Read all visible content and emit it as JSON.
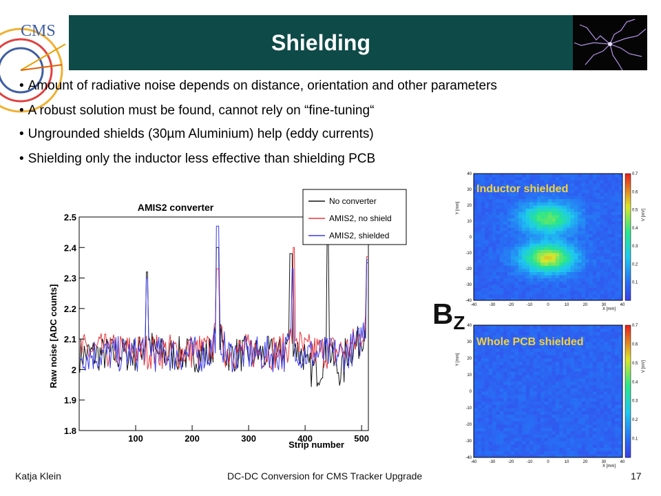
{
  "slide": {
    "title": "Shielding",
    "logo_text": "CMS",
    "bullets": [
      "Amount of radiative noise depends on distance, orientation and other parameters",
      "A robust solution must be found, cannot rely on “fine-tuning“",
      "Ungrounded shields (30µm Aluminium) help (eddy currents)",
      "Shielding only the inductor less effective than shielding PCB"
    ],
    "bullet_symbol": "•",
    "bz_main": "B",
    "bz_sub": "Z"
  },
  "footer": {
    "author": "Katja Klein",
    "talk": "DC-DC Conversion for CMS Tracker Upgrade",
    "page": "17"
  },
  "chart_data": [
    {
      "type": "line",
      "title": "AMIS2 converter",
      "xlabel": "Strip number",
      "ylabel": "Raw noise [ADC counts]",
      "xlim": [
        0,
        512
      ],
      "ylim": [
        1.8,
        2.5
      ],
      "xticks": [
        100,
        200,
        300,
        400,
        500
      ],
      "yticks": [
        1.8,
        1.9,
        2,
        2.1,
        2.2,
        2.3,
        2.4,
        2.5
      ],
      "ytick_labels": [
        "1.8",
        "1.9",
        "2",
        "2.1",
        "2.2",
        "2.3",
        "2.4",
        "2.5"
      ],
      "legend": "top-right",
      "series": [
        {
          "name": "No converter",
          "color": "#111111",
          "peaks": [
            {
              "x": 120,
              "y": 2.32
            },
            {
              "x": 245,
              "y": 2.4
            },
            {
              "x": 375,
              "y": 2.38
            },
            {
              "x": 440,
              "y": 2.44
            },
            {
              "x": 510,
              "y": 2.35
            }
          ],
          "baseline": 2.05
        },
        {
          "name": "AMIS2, no shield",
          "color": "#e8343a",
          "peaks": [
            {
              "x": 245,
              "y": 2.33
            },
            {
              "x": 380,
              "y": 2.4
            },
            {
              "x": 510,
              "y": 2.37
            }
          ],
          "baseline": 2.06
        },
        {
          "name": "AMIS2, shielded",
          "color": "#3a3ae6",
          "peaks": [
            {
              "x": 120,
              "y": 2.3
            },
            {
              "x": 245,
              "y": 2.47
            },
            {
              "x": 378,
              "y": 2.33
            },
            {
              "x": 510,
              "y": 2.36
            }
          ],
          "baseline": 2.05
        }
      ]
    },
    {
      "type": "heatmap",
      "title": "Inductor shielded",
      "xlabel": "X [mm]",
      "ylabel": "Y [mm]",
      "zlabel": "V [mV]",
      "xlim": [
        -40,
        40
      ],
      "ylim": [
        -40,
        40
      ],
      "zlim": [
        0,
        0.7
      ],
      "xticks": [
        -40,
        -30,
        -20,
        -10,
        0,
        10,
        20,
        30,
        40
      ],
      "yticks": [
        -40,
        -30,
        -20,
        -10,
        0,
        10,
        20,
        30,
        40
      ],
      "zticks": [
        0.1,
        0.2,
        0.3,
        0.4,
        0.5,
        0.6,
        0.7
      ],
      "blobs": [
        {
          "x": 0,
          "y": 12,
          "v": 0.35
        },
        {
          "x": 0,
          "y": -13,
          "v": 0.45
        }
      ]
    },
    {
      "type": "heatmap",
      "title": "Whole PCB shielded",
      "xlabel": "X [mm]",
      "ylabel": "Y [mm]",
      "zlabel": "V [mV]",
      "xlim": [
        -40,
        40
      ],
      "ylim": [
        -40,
        40
      ],
      "zlim": [
        0,
        0.7
      ],
      "xticks": [
        -40,
        -30,
        -20,
        -10,
        0,
        10,
        20,
        30,
        40
      ],
      "yticks": [
        -40,
        -30,
        -20,
        -10,
        0,
        10,
        20,
        30,
        40
      ],
      "zticks": [
        0.1,
        0.2,
        0.3,
        0.4,
        0.5,
        0.6,
        0.7
      ],
      "blobs": []
    }
  ]
}
